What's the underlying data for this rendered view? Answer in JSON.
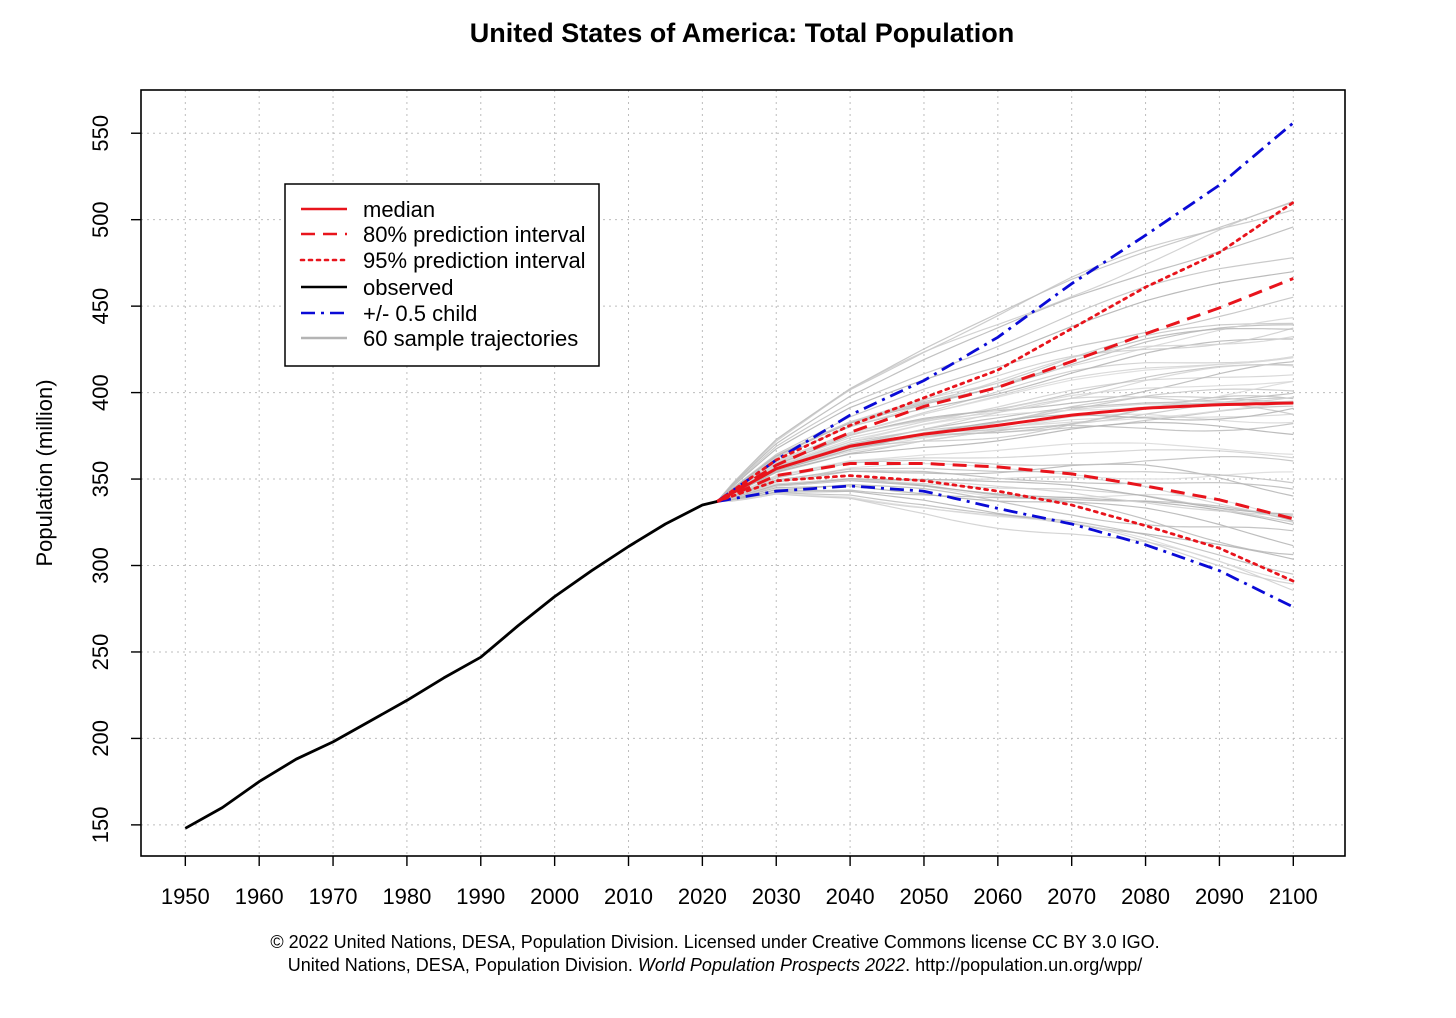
{
  "chart_data": {
    "type": "line",
    "title": "United States of America: Total Population",
    "xlabel": "",
    "ylabel": "Population (million)",
    "xlim": [
      1944,
      2107
    ],
    "ylim": [
      132,
      575
    ],
    "x_ticks": [
      1950,
      1960,
      1970,
      1980,
      1990,
      2000,
      2010,
      2020,
      2030,
      2040,
      2050,
      2060,
      2070,
      2080,
      2090,
      2100
    ],
    "y_ticks": [
      150,
      200,
      250,
      300,
      350,
      400,
      450,
      500,
      550
    ],
    "grid": true,
    "legend_position": "top-left",
    "legend": [
      {
        "label": "median",
        "color": "#e8141c",
        "style": "solid"
      },
      {
        "label": "80% prediction interval",
        "color": "#e8141c",
        "style": "dashed"
      },
      {
        "label": "95% prediction interval",
        "color": "#e8141c",
        "style": "dotted"
      },
      {
        "label": "observed",
        "color": "#000000",
        "style": "solid"
      },
      {
        "label": "+/- 0.5 child",
        "color": "#0a0ad6",
        "style": "dashdot"
      },
      {
        "label": "60 sample trajectories",
        "color": "#b4b4b4",
        "style": "solid"
      }
    ],
    "observed": {
      "x": [
        1950,
        1955,
        1960,
        1965,
        1970,
        1975,
        1980,
        1985,
        1990,
        1995,
        2000,
        2005,
        2010,
        2015,
        2020,
        2022
      ],
      "y": [
        148,
        160,
        175,
        188,
        198,
        210,
        222,
        235,
        247,
        265,
        282,
        297,
        311,
        324,
        335,
        337
      ]
    },
    "projection_x": [
      2022,
      2030,
      2040,
      2050,
      2060,
      2070,
      2080,
      2090,
      2100
    ],
    "series": [
      {
        "name": "median",
        "y": [
          337,
          356,
          369,
          376,
          381,
          387,
          391,
          393,
          394
        ]
      },
      {
        "name": "80% prediction interval upper",
        "y": [
          337,
          358,
          377,
          392,
          403,
          418,
          434,
          449,
          466
        ]
      },
      {
        "name": "80% prediction interval lower",
        "y": [
          337,
          352,
          359,
          359,
          357,
          353,
          346,
          338,
          327
        ]
      },
      {
        "name": "95% prediction interval upper",
        "y": [
          337,
          361,
          381,
          397,
          413,
          437,
          461,
          481,
          510
        ]
      },
      {
        "name": "95% prediction interval lower",
        "y": [
          337,
          349,
          352,
          349,
          343,
          335,
          323,
          310,
          291
        ]
      },
      {
        "name": "+/- 0.5 child upper",
        "y": [
          337,
          361,
          387,
          407,
          432,
          463,
          491,
          520,
          556
        ]
      },
      {
        "name": "+/- 0.5 child lower",
        "y": [
          337,
          343,
          346,
          343,
          333,
          324,
          312,
          297,
          276
        ]
      }
    ],
    "sample_trajectories": {
      "count": 60,
      "final_range": [
        283,
        521
      ]
    }
  },
  "footer": {
    "line1": "© 2022 United Nations, DESA, Population Division. Licensed under Creative Commons license CC BY 3.0 IGO.",
    "line2_start": "United Nations, DESA, Population Division. ",
    "line2_italic": "World Population Prospects 2022",
    "line2_end": ". http://population.un.org/wpp/"
  }
}
